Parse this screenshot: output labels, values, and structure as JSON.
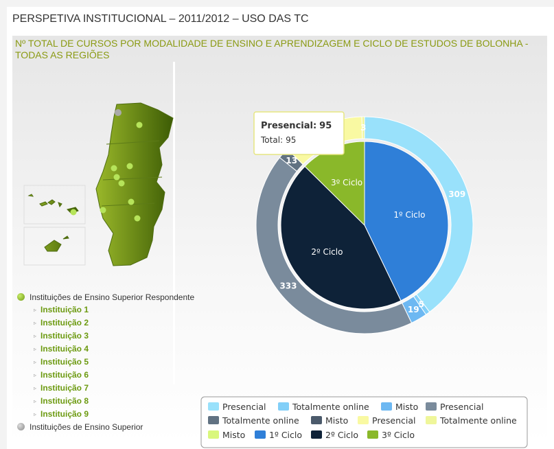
{
  "header": {
    "title": "PERSPETIVA INSTITUCIONAL – 2011/2012 – USO DAS TC"
  },
  "map_legend": {
    "respondent": "Instituições de Ensino Superior Respondente",
    "institutions": [
      "Instituição 1",
      "Instituição 2",
      "Instituição 3",
      "Instituição 4",
      "Instituição 5",
      "Instituição 6",
      "Instituição 7",
      "Instituição 8",
      "Instituição 9"
    ],
    "other": "Instituições de Ensino Superior"
  },
  "chart_data": {
    "type": "donut",
    "title": "Nº TOTAL DE CURSOS POR MODALIDADE DE ENSINO E APRENDIZAGEM E CICLO DE ESTUDOS DE BOLONHA - TODAS AS REGIÕES",
    "groups": [
      {
        "name": "1º Ciclo",
        "color": "#2f7fd8",
        "series": [
          {
            "name": "Presencial",
            "color": "#99e1fb",
            "value": 309
          },
          {
            "name": "Totalmente online",
            "color": "#82cff8",
            "value": 5
          },
          {
            "name": "Misto",
            "color": "#6db8f2",
            "value": 19
          }
        ]
      },
      {
        "name": "2º Ciclo",
        "color": "#0e2238",
        "series": [
          {
            "name": "Presencial",
            "color": "#7a8b9c",
            "value": 333
          },
          {
            "name": "Totalmente online",
            "color": "#617282",
            "value": 13
          },
          {
            "name": "Misto",
            "color": "#4b5a6b",
            "value": 0
          }
        ]
      },
      {
        "name": "3º Ciclo",
        "color": "#8ab82a",
        "series": [
          {
            "name": "Presencial",
            "color": "#f9f9a2",
            "value": 95
          },
          {
            "name": "Totalmente online",
            "color": "#eff69a",
            "value": 3
          },
          {
            "name": "Misto",
            "color": "#d9f77c",
            "value": 0
          }
        ]
      }
    ],
    "tooltip": {
      "label": "Presencial:",
      "value": 95,
      "total_label": "Total:",
      "total": 95
    }
  }
}
